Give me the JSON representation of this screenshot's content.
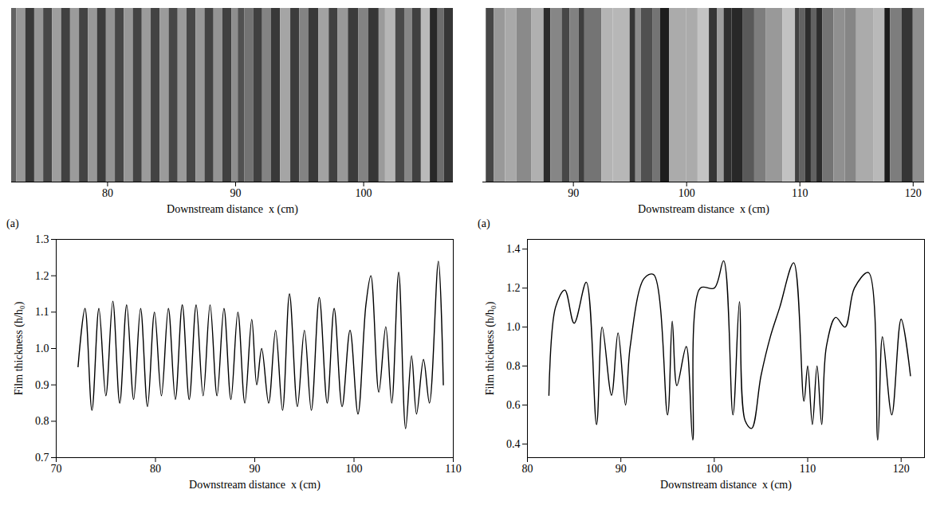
{
  "chart_data": [
    {
      "type": "line",
      "panel_label": "(a)",
      "photo": {
        "xlim": [
          72.5,
          107
        ],
        "xticks": [
          80,
          90,
          100
        ],
        "xlabel": "Downstream distance  x (cm)"
      },
      "xlabel": "Downstream distance  x (cm)",
      "ylabel": "Film thickness (h/h₀)",
      "color": "#000000",
      "xlim": [
        70,
        110
      ],
      "xticks": [
        70,
        80,
        90,
        100,
        110
      ],
      "ylim": [
        0.7,
        1.3
      ],
      "yticks": [
        0.7,
        0.8,
        0.9,
        {
          "value": 1,
          "label": "1.0"
        },
        1.1,
        1.2,
        1.3
      ],
      "x": [
        72.2,
        72.9,
        73.6,
        74.3,
        75.0,
        75.7,
        76.4,
        77.1,
        77.8,
        78.5,
        79.2,
        79.9,
        80.6,
        81.3,
        82.0,
        82.7,
        83.4,
        84.1,
        84.8,
        85.5,
        86.2,
        86.9,
        87.6,
        88.3,
        89.0,
        89.7,
        90.2,
        90.7,
        91.4,
        92.1,
        92.8,
        93.5,
        94.3,
        95.0,
        95.7,
        96.5,
        97.3,
        98.0,
        98.8,
        99.6,
        100.4,
        101.2,
        101.7,
        102.5,
        103.2,
        103.8,
        104.5,
        105.2,
        105.8,
        106.3,
        107.0,
        107.6,
        108.5,
        109.0
      ],
      "values": [
        0.95,
        1.11,
        0.83,
        1.11,
        0.87,
        1.13,
        0.85,
        1.12,
        0.86,
        1.11,
        0.84,
        1.1,
        0.87,
        1.11,
        0.86,
        1.12,
        0.86,
        1.12,
        0.87,
        1.12,
        0.87,
        1.11,
        0.86,
        1.1,
        0.85,
        1.08,
        0.9,
        1.0,
        0.85,
        1.05,
        0.83,
        1.15,
        0.84,
        1.05,
        0.83,
        1.14,
        0.85,
        1.11,
        0.84,
        1.05,
        0.82,
        1.12,
        1.2,
        0.88,
        1.06,
        0.85,
        1.21,
        0.78,
        0.98,
        0.82,
        0.97,
        0.85,
        1.24,
        0.9
      ]
    },
    {
      "type": "line",
      "panel_label": "(a)",
      "photo": {
        "xlim": [
          82,
          121
        ],
        "xticks": [
          90,
          100,
          110,
          120
        ],
        "xlabel": "Downstream distance  x (cm)"
      },
      "xlabel": "Downstream distance  x (cm)",
      "ylabel": "Film thickness (h/h₀)",
      "color": "#000000",
      "xlim": [
        80,
        122.5
      ],
      "xticks": [
        80,
        90,
        100,
        110,
        120
      ],
      "ylim": [
        0.33,
        1.45
      ],
      "yticks": [
        0.4,
        0.6,
        0.8,
        {
          "value": 1,
          "label": "1.0"
        },
        1.2,
        1.4
      ],
      "x": [
        82.3,
        83.0,
        84.0,
        85.0,
        86.3,
        87.4,
        88.0,
        89.0,
        89.7,
        90.5,
        91.0,
        92.5,
        93.5,
        95.0,
        95.5,
        96.0,
        97.0,
        97.7,
        98.5,
        100.0,
        101.0,
        102.0,
        102.7,
        103.3,
        104.0,
        105.0,
        106.0,
        107.0,
        108.5,
        109.6,
        110.0,
        110.5,
        111.0,
        111.5,
        112.0,
        113.0,
        114.0,
        115.0,
        116.5,
        117.5,
        118.0,
        119.0,
        120.0,
        121.0
      ],
      "values": [
        0.65,
        1.1,
        1.19,
        1.02,
        1.23,
        0.5,
        1.0,
        0.65,
        0.97,
        0.6,
        0.9,
        1.25,
        1.27,
        0.55,
        1.03,
        0.7,
        0.9,
        0.42,
        1.2,
        1.2,
        1.34,
        0.55,
        1.13,
        0.52,
        0.48,
        0.75,
        0.95,
        1.1,
        1.33,
        0.62,
        0.8,
        0.5,
        0.8,
        0.5,
        0.9,
        1.05,
        1.0,
        1.2,
        1.28,
        0.42,
        0.95,
        0.55,
        1.04,
        0.75
      ]
    }
  ]
}
